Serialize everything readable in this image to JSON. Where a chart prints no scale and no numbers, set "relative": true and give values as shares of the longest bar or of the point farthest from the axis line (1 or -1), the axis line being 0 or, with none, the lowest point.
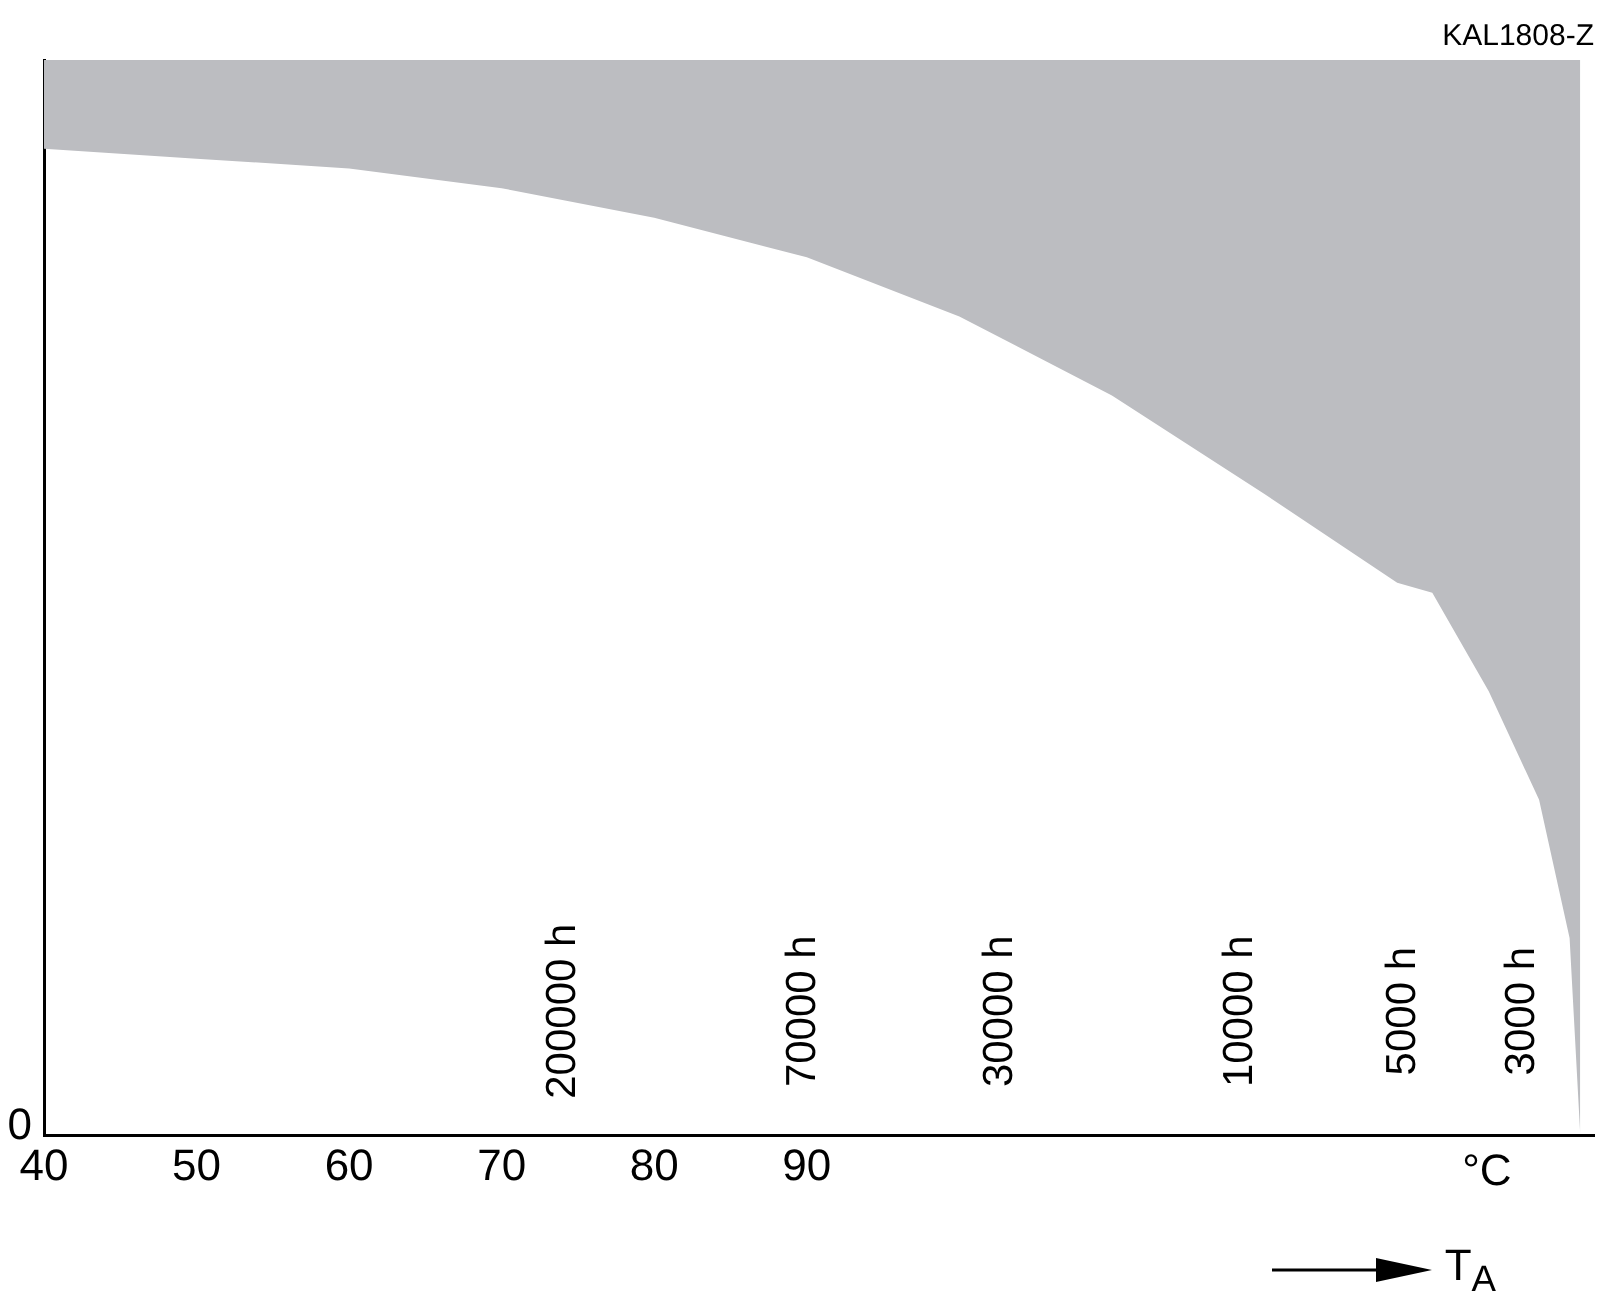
{
  "chart_data": {
    "type": "area",
    "relative": true,
    "xlabel": "T$_{A}$",
    "xlim": [
      40,
      141.6
    ],
    "xticks": [
      40,
      50,
      60,
      70,
      80,
      90
    ],
    "grid": false,
    "legend": false,
    "tick_labels": "x",
    "x": [
      40,
      50,
      60,
      70,
      80,
      90,
      100,
      110,
      120,
      128.7,
      131,
      134.7,
      138,
      140,
      140.7
    ],
    "series": [
      {
        "color": "#bcbdc1",
        "values": [
          1,
          0.99,
          0.98,
          0.96,
          0.93,
          0.89,
          0.83,
          0.75,
          0.65,
          0.56,
          0.55,
          0.45,
          0.34,
          0.2,
          0
        ]
      }
    ],
    "annotations": [
      "KAL1808-Z",
      "0",
      "°C",
      "200000 h",
      "70000 h",
      "30000 h",
      "10000 h",
      "5000 h",
      "3000 h"
    ]
  }
}
